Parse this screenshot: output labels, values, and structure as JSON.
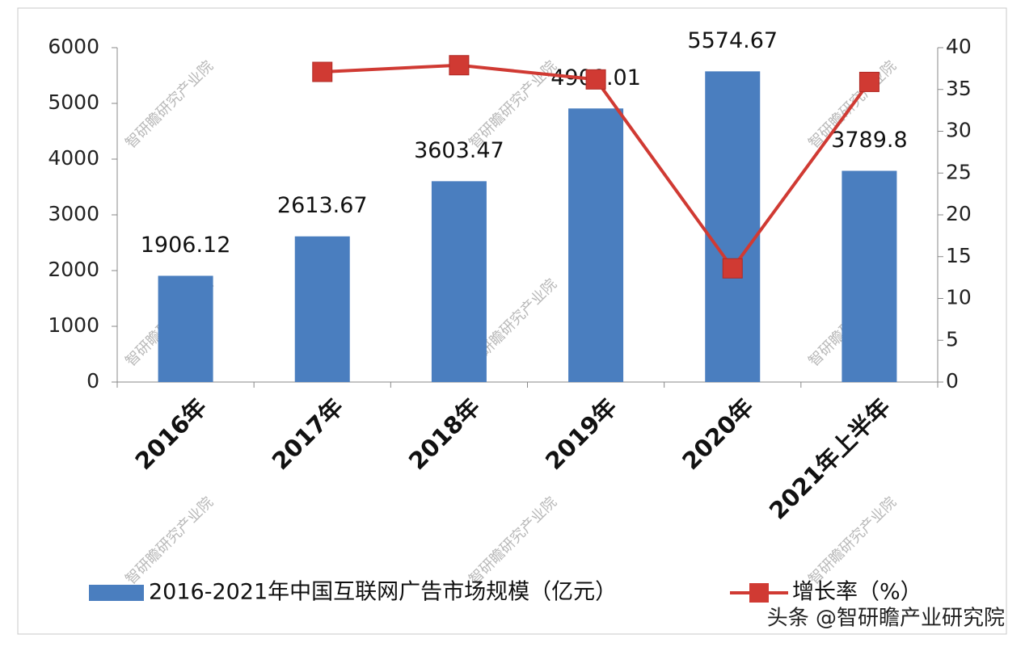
{
  "chart_data": {
    "type": "bar-line",
    "categories": [
      "2016年",
      "2017年",
      "2018年",
      "2019年",
      "2020年",
      "2021年上半年"
    ],
    "series": [
      {
        "name": "2016-2021年中国互联网广告市场规模（亿元）",
        "type": "bar",
        "color": "#4a7ebf",
        "values": [
          1906.12,
          2613.67,
          3603.47,
          4909.01,
          5574.67,
          3789.8
        ]
      },
      {
        "name": "增长率（%）",
        "type": "line",
        "axis": "y2",
        "color": "#d03a33",
        "values": [
          null,
          37.1,
          37.9,
          36.2,
          13.6,
          35.9
        ]
      }
    ],
    "ylim": [
      0,
      6000
    ],
    "yticks": [
      0,
      1000,
      2000,
      3000,
      4000,
      5000,
      6000
    ],
    "y2lim": [
      0,
      40
    ],
    "y2ticks": [
      0,
      5,
      10,
      15,
      20,
      25,
      30,
      35,
      40
    ],
    "legend": "bottom",
    "watermark": "智研瞻研究产业院",
    "footer": "头条 @智研瞻产业研究院"
  }
}
